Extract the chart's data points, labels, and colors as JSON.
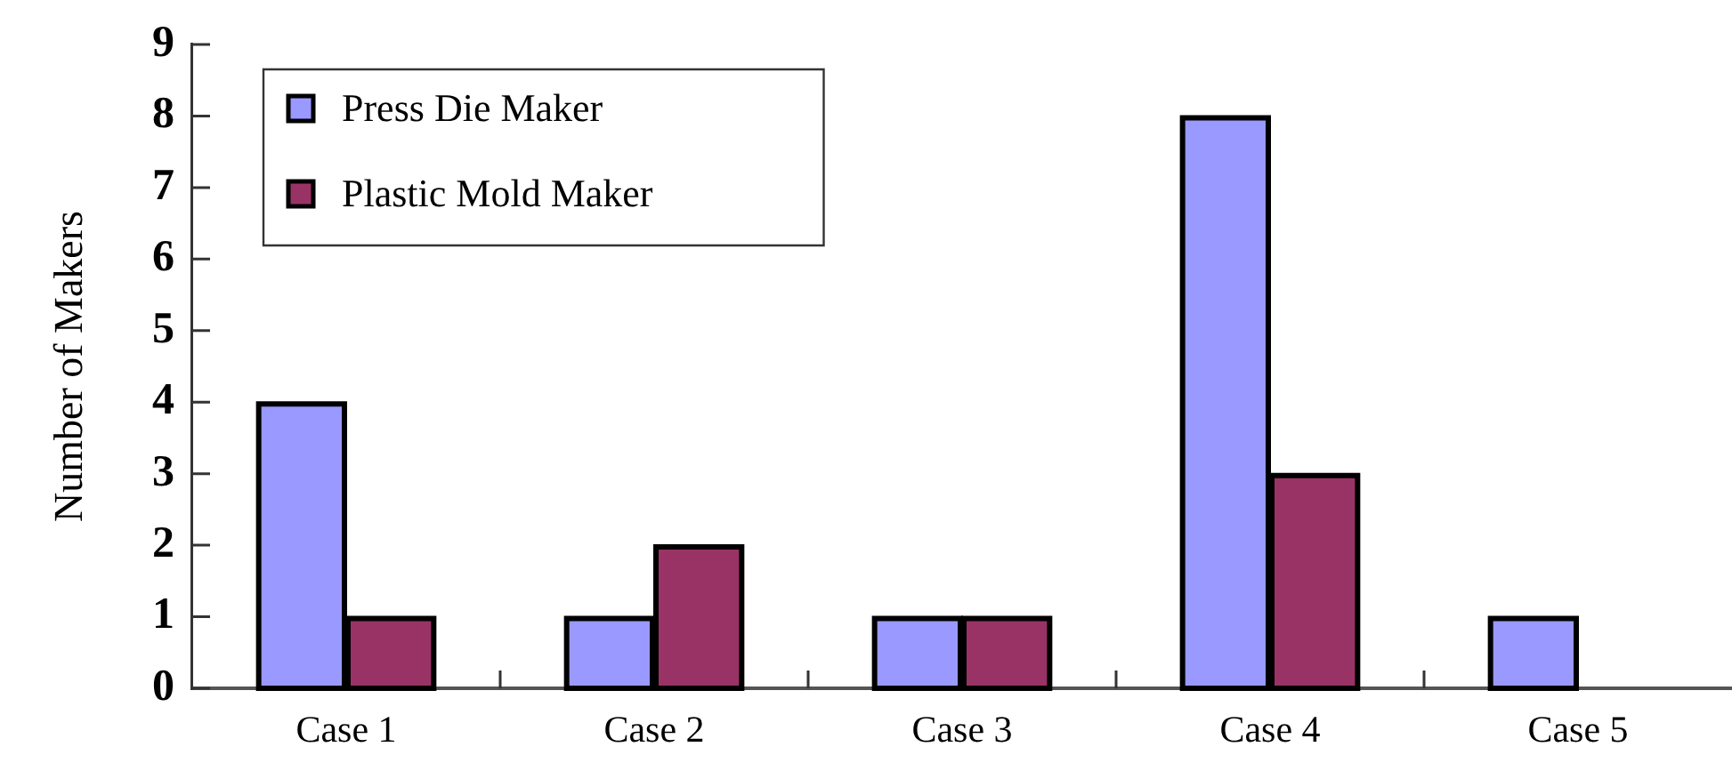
{
  "chart_data": {
    "type": "bar",
    "ylabel": "Number of Makers",
    "categories": [
      "Case 1",
      "Case 2",
      "Case 3",
      "Case 4",
      "Case 5"
    ],
    "series": [
      {
        "name": "Press Die Maker",
        "color": "#9999ff",
        "values": [
          4,
          1,
          1,
          8,
          1
        ]
      },
      {
        "name": "Plastic Mold Maker",
        "color": "#993366",
        "values": [
          1,
          2,
          1,
          3,
          0
        ]
      }
    ],
    "ylim": [
      0,
      9
    ],
    "yticks": [
      0,
      1,
      2,
      3,
      4,
      5,
      6,
      7,
      8,
      9
    ],
    "grid": false,
    "legend": "top left"
  }
}
